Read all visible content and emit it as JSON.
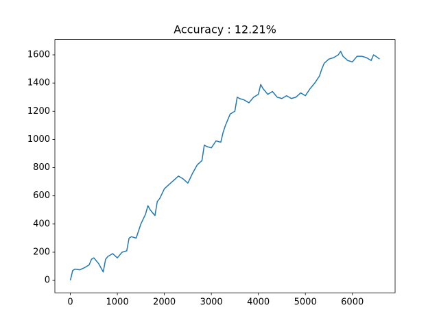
{
  "chart_data": {
    "type": "line",
    "title": "Accuracy : 12.21%",
    "x": [
      0,
      50,
      100,
      200,
      300,
      400,
      450,
      500,
      600,
      700,
      750,
      800,
      900,
      1000,
      1100,
      1200,
      1250,
      1300,
      1400,
      1500,
      1600,
      1650,
      1700,
      1800,
      1850,
      1900,
      2000,
      2100,
      2200,
      2300,
      2400,
      2500,
      2600,
      2700,
      2800,
      2850,
      2900,
      3000,
      3100,
      3200,
      3250,
      3300,
      3400,
      3500,
      3550,
      3600,
      3700,
      3800,
      3900,
      4000,
      4050,
      4100,
      4200,
      4300,
      4400,
      4500,
      4600,
      4700,
      4800,
      4900,
      5000,
      5100,
      5200,
      5300,
      5350,
      5400,
      5500,
      5600,
      5700,
      5750,
      5800,
      5900,
      6000,
      6100,
      6200,
      6300,
      6400,
      6450,
      6500,
      6580
    ],
    "values": [
      0,
      70,
      80,
      75,
      90,
      110,
      150,
      160,
      120,
      60,
      150,
      170,
      190,
      160,
      200,
      210,
      300,
      310,
      300,
      400,
      470,
      530,
      500,
      460,
      560,
      580,
      650,
      680,
      710,
      740,
      720,
      690,
      760,
      820,
      850,
      960,
      950,
      940,
      990,
      980,
      1050,
      1100,
      1180,
      1200,
      1300,
      1290,
      1280,
      1260,
      1300,
      1320,
      1390,
      1360,
      1320,
      1340,
      1300,
      1290,
      1310,
      1290,
      1300,
      1330,
      1310,
      1360,
      1400,
      1450,
      1500,
      1540,
      1570,
      1580,
      1600,
      1625,
      1590,
      1560,
      1550,
      1590,
      1590,
      1580,
      1560,
      1600,
      1590,
      1570
    ],
    "color": "#1f77b4",
    "xlim": [
      -329,
      6909
    ],
    "xticks": [
      0,
      1000,
      2000,
      3000,
      4000,
      5000,
      6000
    ],
    "ylim": [
      -88,
      1709
    ],
    "yticks": [
      0,
      200,
      400,
      600,
      800,
      1000,
      1200,
      1400,
      1600
    ],
    "grid": false
  }
}
